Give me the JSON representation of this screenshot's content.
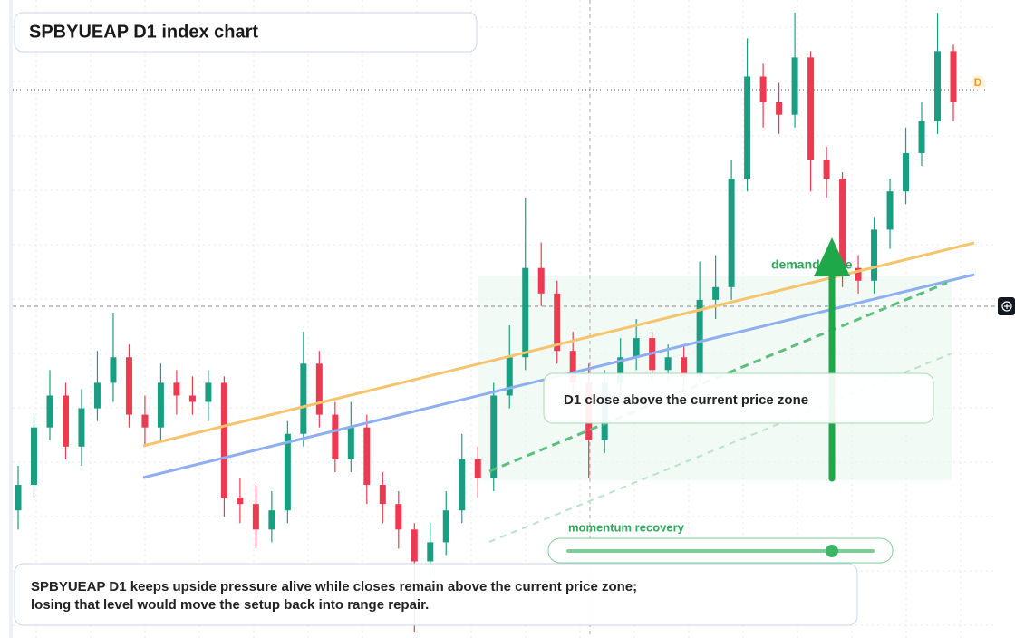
{
  "chart_data": {
    "type": "candlestick",
    "title": "SPBYUEAP D1 index chart",
    "zone_label": "demand zone",
    "callout": "D1 close above the current price zone",
    "slider_label": "momentum recovery",
    "note_lines": [
      "SPBYUEAP D1 keeps upside pressure alive while closes remain above the current price zone;",
      "losing that level would move the setup back into range repair."
    ],
    "badge": "D",
    "up_color": "#1a9e82",
    "down_color": "#ec3a50",
    "ylim": [
      0,
      100
    ],
    "open": [
      20,
      24,
      33,
      38,
      30,
      36,
      40,
      44,
      35,
      33,
      40,
      38,
      37,
      40,
      22,
      21,
      17,
      20,
      32,
      43,
      35,
      28,
      33,
      24,
      21,
      17,
      12,
      15,
      20,
      28,
      25,
      38,
      44,
      58,
      54,
      45,
      40,
      31,
      40,
      44,
      47,
      42,
      44,
      41,
      53,
      55,
      72,
      88,
      84,
      82,
      91,
      75,
      72,
      58,
      56,
      64,
      70,
      76,
      81,
      92
    ],
    "high": [
      27,
      35,
      42,
      40,
      39,
      45,
      51,
      46,
      38,
      43,
      42,
      41,
      42,
      41,
      25,
      24,
      23,
      34,
      48,
      45,
      37,
      37,
      35,
      26,
      23,
      18,
      18,
      23,
      32,
      30,
      40,
      49,
      69,
      62,
      56,
      48,
      43,
      42,
      47,
      50,
      48,
      46,
      46,
      59,
      60,
      75,
      94,
      90,
      87,
      98,
      92,
      77,
      73,
      60,
      66,
      72,
      80,
      84,
      98,
      93
    ],
    "low": [
      17,
      22,
      31,
      28,
      27,
      34,
      37,
      33,
      30,
      31,
      35,
      35,
      34,
      19,
      18,
      14,
      15,
      18,
      30,
      33,
      26,
      26,
      21,
      18,
      14,
      1,
      10,
      13,
      18,
      22,
      23,
      36,
      42,
      52,
      43,
      37,
      25,
      29,
      37,
      42,
      40,
      40,
      38,
      40,
      50,
      53,
      70,
      80,
      79,
      80,
      70,
      69,
      55,
      54,
      54,
      61,
      68,
      74,
      79,
      81
    ],
    "close": [
      24,
      33,
      38,
      30,
      36,
      40,
      44,
      35,
      33,
      40,
      38,
      37,
      40,
      22,
      21,
      17,
      20,
      32,
      43,
      35,
      28,
      33,
      24,
      21,
      17,
      12,
      15,
      20,
      28,
      25,
      38,
      44,
      58,
      54,
      45,
      40,
      31,
      40,
      44,
      47,
      42,
      44,
      41,
      53,
      55,
      72,
      88,
      84,
      82,
      91,
      75,
      72,
      58,
      56,
      64,
      70,
      76,
      81,
      92,
      84
    ]
  }
}
